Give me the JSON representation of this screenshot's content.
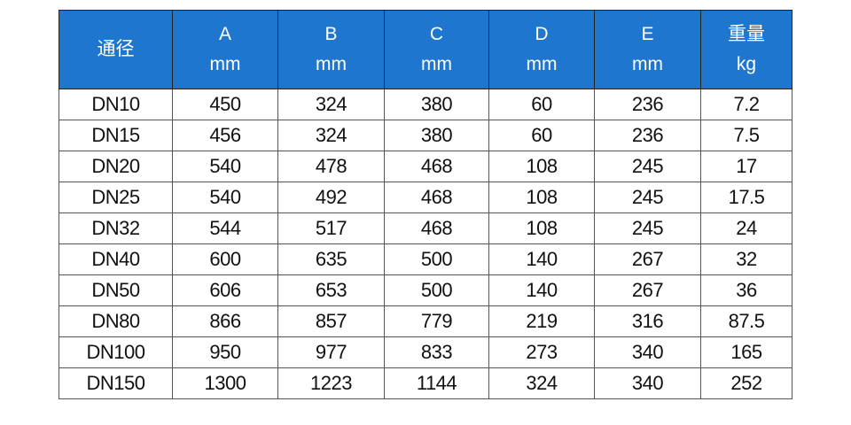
{
  "header_color": "#1f76cf",
  "columns": [
    {
      "label": "通径",
      "unit": ""
    },
    {
      "label": "A",
      "unit": "mm"
    },
    {
      "label": "B",
      "unit": "mm"
    },
    {
      "label": "C",
      "unit": "mm"
    },
    {
      "label": "D",
      "unit": "mm"
    },
    {
      "label": "E",
      "unit": "mm"
    },
    {
      "label": "重量",
      "unit": "kg"
    }
  ],
  "rows": [
    [
      "DN10",
      "450",
      "324",
      "380",
      "60",
      "236",
      "7.2"
    ],
    [
      "DN15",
      "456",
      "324",
      "380",
      "60",
      "236",
      "7.5"
    ],
    [
      "DN20",
      "540",
      "478",
      "468",
      "108",
      "245",
      "17"
    ],
    [
      "DN25",
      "540",
      "492",
      "468",
      "108",
      "245",
      "17.5"
    ],
    [
      "DN32",
      "544",
      "517",
      "468",
      "108",
      "245",
      "24"
    ],
    [
      "DN40",
      "600",
      "635",
      "500",
      "140",
      "267",
      "32"
    ],
    [
      "DN50",
      "606",
      "653",
      "500",
      "140",
      "267",
      "36"
    ],
    [
      "DN80",
      "866",
      "857",
      "779",
      "219",
      "316",
      "87.5"
    ],
    [
      "DN100",
      "950",
      "977",
      "833",
      "273",
      "340",
      "165"
    ],
    [
      "DN150",
      "1300",
      "1223",
      "1144",
      "324",
      "340",
      "252"
    ]
  ]
}
